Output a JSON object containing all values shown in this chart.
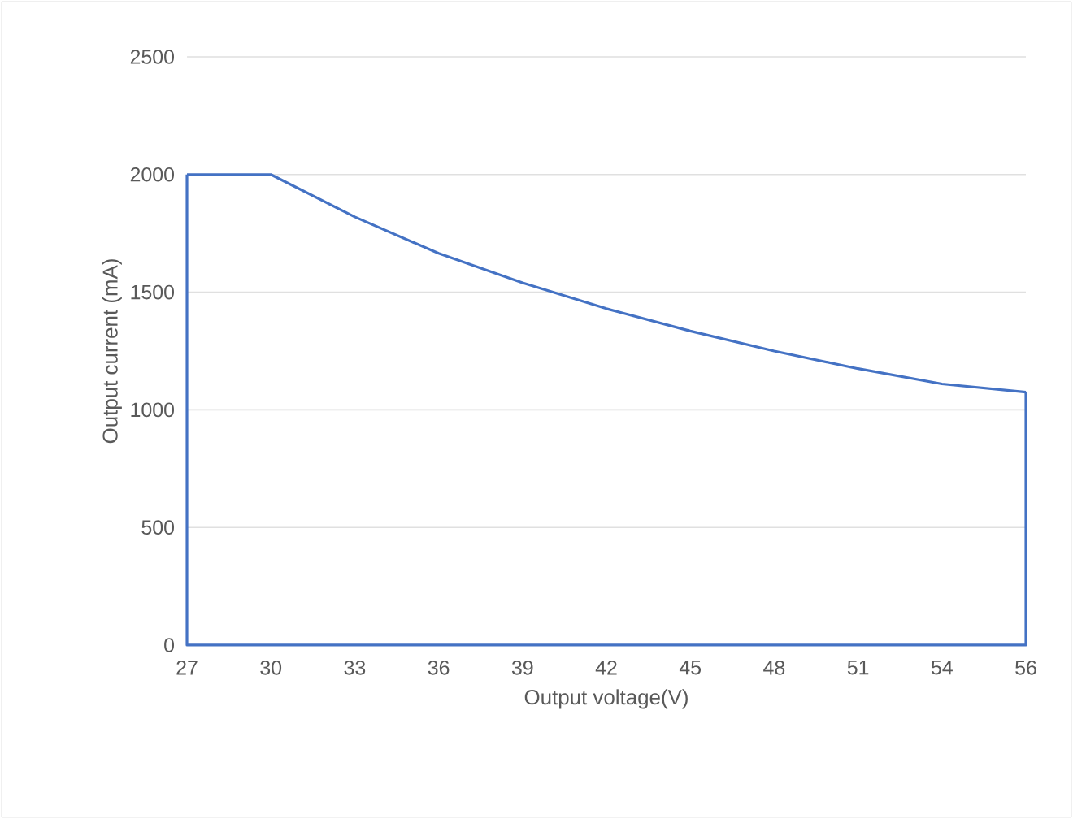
{
  "chart_data": {
    "type": "line",
    "xlabel": "Output voltage(V)",
    "ylabel": "Output current (mA)",
    "categories": [
      "27",
      "30",
      "33",
      "36",
      "39",
      "42",
      "45",
      "48",
      "51",
      "54",
      "56"
    ],
    "series": [
      {
        "color": "#4472c4",
        "values": [
          2000,
          2000,
          1820,
          1665,
          1540,
          1430,
          1335,
          1250,
          1175,
          1110,
          1075
        ]
      }
    ],
    "ylim": [
      0,
      2500
    ],
    "yticks": [
      0,
      500,
      1000,
      1500,
      2000,
      2500
    ],
    "grid": "y",
    "marker": "none",
    "line_style": "solid"
  }
}
